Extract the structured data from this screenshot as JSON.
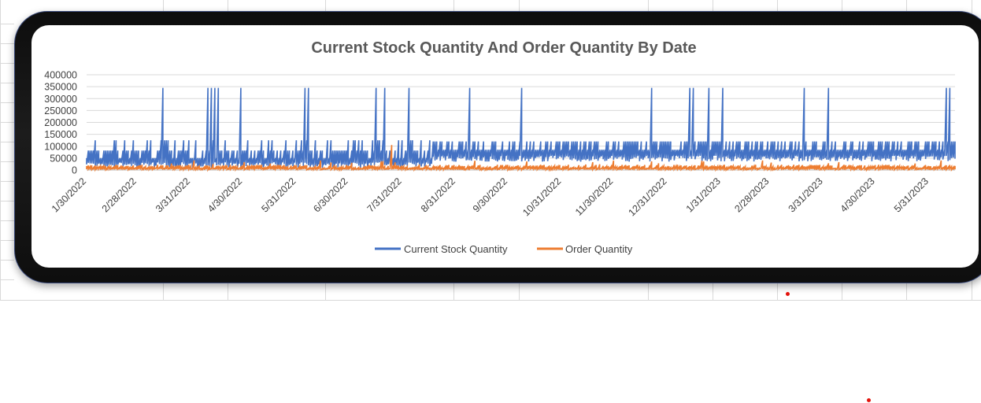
{
  "chart_data": {
    "type": "line",
    "title": "Current Stock Quantity And Order Quantity By Date",
    "xlabel": "",
    "ylabel": "",
    "ylim": [
      0,
      400000
    ],
    "y_ticks": [
      "400000",
      "350000",
      "300000",
      "250000",
      "200000",
      "150000",
      "100000",
      "50000",
      "0"
    ],
    "x_tick_labels": [
      "1/30/2022",
      "2/28/2022",
      "3/31/2022",
      "4/30/2022",
      "5/31/2022",
      "6/30/2022",
      "7/31/2022",
      "8/31/2022",
      "9/30/2022",
      "10/31/2022",
      "11/30/2022",
      "12/31/2022",
      "1/31/2023",
      "2/28/2023",
      "3/31/2023",
      "4/30/2023",
      "5/31/2023"
    ],
    "x_range": [
      "1/30/2022",
      "6/15/2023"
    ],
    "grid": true,
    "legend_position": "bottom",
    "series": [
      {
        "name": "Current Stock Quantity",
        "color": "#4472c4",
        "description_values": {
          "baseline_range": [
            0,
            125000
          ],
          "spike_value": 345000,
          "spike_dates": [
            "3/15/2022",
            "4/10/2022",
            "4/12/2022",
            "4/14/2022",
            "4/16/2022",
            "4/29/2022",
            "6/5/2022",
            "6/7/2022",
            "7/16/2022",
            "7/21/2022",
            "8/4/2022",
            "9/8/2022",
            "10/8/2022",
            "12/22/2022",
            "1/13/2023",
            "1/15/2023",
            "1/24/2023",
            "2/1/2023",
            "3/20/2023",
            "4/3/2023",
            "6/10/2023",
            "6/12/2023"
          ]
        }
      },
      {
        "name": "Order Quantity",
        "color": "#ed7d31",
        "description_values": {
          "baseline_range": [
            0,
            40000
          ],
          "peak_value": 105000,
          "peak_date": "7/25/2022"
        }
      }
    ]
  }
}
